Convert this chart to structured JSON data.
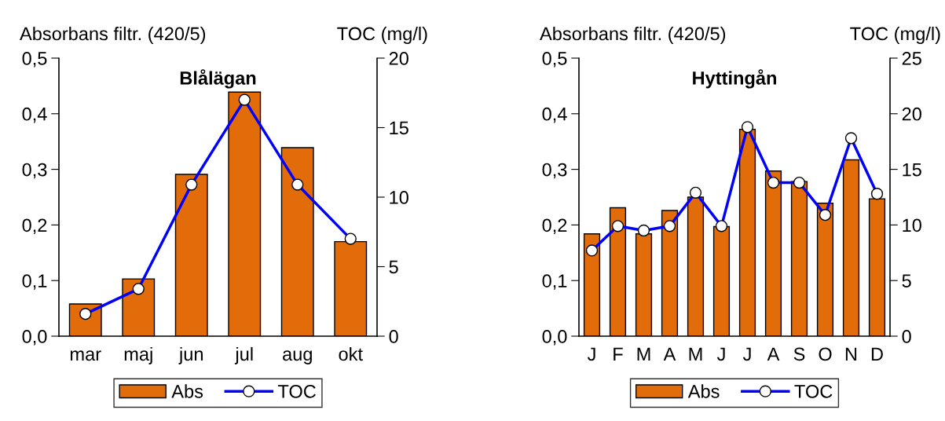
{
  "chart_data": [
    {
      "type": "bar",
      "title": "Blålägan",
      "ylabel": "Absorbans filtr. (420/5)",
      "y2label": "TOC (mg/l)",
      "categories": [
        "mar",
        "maj",
        "jun",
        "jul",
        "aug",
        "okt"
      ],
      "series": [
        {
          "name": "Abs",
          "color": "#e36c0a",
          "values": [
            0.058,
            0.103,
            0.291,
            0.439,
            0.339,
            0.17
          ]
        },
        {
          "name": "TOC",
          "type": "line",
          "axis": "y2",
          "color": "#0000ff",
          "marker": "circle",
          "values": [
            1.6,
            3.4,
            10.9,
            17.0,
            10.9,
            7.0
          ]
        }
      ],
      "ylim": [
        0,
        0.5
      ],
      "yticks": [
        {
          "value": 0,
          "label": "0,0"
        },
        {
          "value": 0.1,
          "label": "0,1"
        },
        {
          "value": 0.2,
          "label": "0,2"
        },
        {
          "value": 0.3,
          "label": "0,3"
        },
        {
          "value": 0.4,
          "label": "0,4"
        },
        {
          "value": 0.5,
          "label": "0,5"
        }
      ],
      "y2lim": [
        0,
        20
      ],
      "y2ticks": [
        0,
        5,
        10,
        15,
        20
      ],
      "grid": false,
      "legend": "bottom"
    },
    {
      "type": "bar",
      "title": "Hyttingån",
      "ylabel": "Absorbans filtr. (420/5)",
      "y2label": "TOC (mg/l)",
      "categories": [
        "J",
        "F",
        "M",
        "A",
        "M",
        "J",
        "J",
        "A",
        "S",
        "O",
        "N",
        "D"
      ],
      "series": [
        {
          "name": "Abs",
          "color": "#e36c0a",
          "values": [
            0.184,
            0.231,
            0.184,
            0.226,
            0.25,
            0.197,
            0.372,
            0.297,
            0.278,
            0.239,
            0.317,
            0.247
          ]
        },
        {
          "name": "TOC",
          "type": "line",
          "axis": "y2",
          "color": "#0000ff",
          "marker": "circle",
          "values": [
            7.7,
            9.9,
            9.5,
            9.9,
            12.9,
            9.9,
            18.8,
            13.8,
            13.8,
            10.9,
            17.8,
            12.8
          ]
        }
      ],
      "ylim": [
        0,
        0.5
      ],
      "yticks": [
        {
          "value": 0,
          "label": "0,0"
        },
        {
          "value": 0.1,
          "label": "0,1"
        },
        {
          "value": 0.2,
          "label": "0,2"
        },
        {
          "value": 0.3,
          "label": "0,3"
        },
        {
          "value": 0.4,
          "label": "0,4"
        },
        {
          "value": 0.5,
          "label": "0,5"
        }
      ],
      "y2lim": [
        0,
        25
      ],
      "y2ticks": [
        0,
        5,
        10,
        15,
        20,
        25
      ],
      "grid": false,
      "legend": "bottom"
    }
  ]
}
